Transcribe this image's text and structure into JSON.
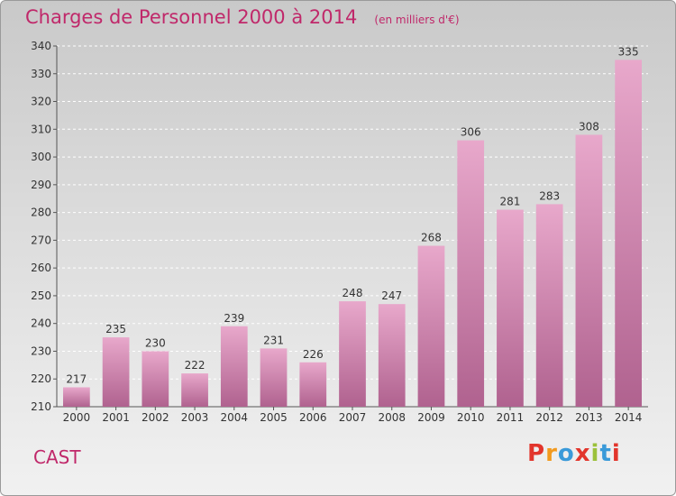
{
  "header": {
    "title": "Charges de Personnel 2000 à 2014",
    "subtitle": "(en milliers d'€)"
  },
  "footer": {
    "commune": "CAST",
    "logo_text": "Proxiti"
  },
  "colors": {
    "accent": "#c0286a",
    "bar_light": "#e8a8cb",
    "bar_dark": "#b0628f",
    "logo_letters": [
      "#e2352c",
      "#f29a1e",
      "#3a9ad9",
      "#e2352c",
      "#9bc13b",
      "#3a9ad9",
      "#e2352c"
    ]
  },
  "chart_data": {
    "type": "bar",
    "title": "Charges de Personnel 2000 à 2014",
    "subtitle": "(en milliers d'€)",
    "categories": [
      "2000",
      "2001",
      "2002",
      "2003",
      "2004",
      "2005",
      "2006",
      "2007",
      "2008",
      "2009",
      "2010",
      "2011",
      "2012",
      "2013",
      "2014"
    ],
    "values": [
      217,
      235,
      230,
      222,
      239,
      231,
      226,
      248,
      247,
      268,
      306,
      281,
      283,
      308,
      335
    ],
    "ylim": [
      210,
      340
    ],
    "yticks": [
      210,
      220,
      230,
      240,
      250,
      260,
      270,
      280,
      290,
      300,
      310,
      320,
      330,
      340
    ],
    "grid": true,
    "legend": "none"
  }
}
